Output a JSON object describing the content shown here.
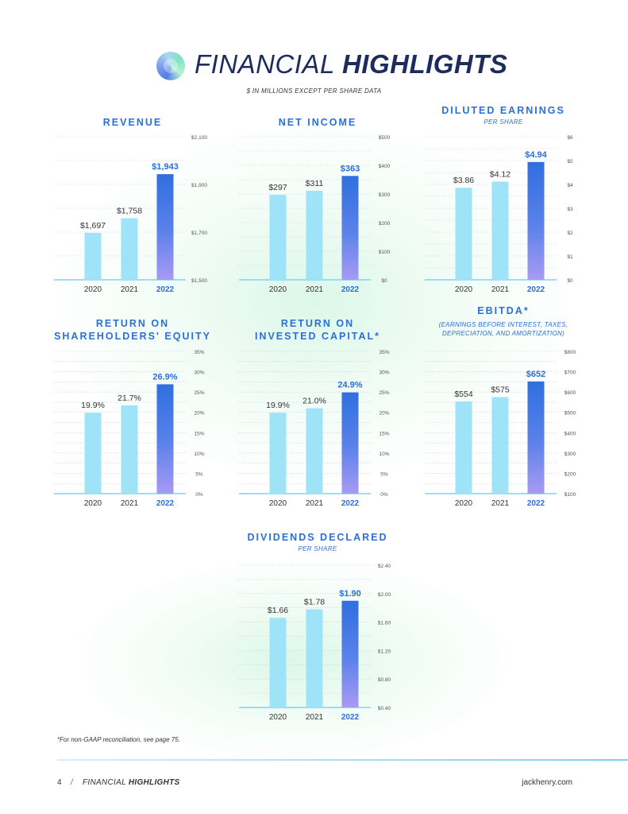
{
  "header": {
    "title_light": "FINANCIAL ",
    "title_bold": "HIGHLIGHTS",
    "subtitle": "$ IN MILLIONS EXCEPT PER SHARE DATA"
  },
  "chart_data": [
    {
      "id": "revenue",
      "type": "bar",
      "title": "REVENUE",
      "subtitle": "",
      "categories": [
        "2020",
        "2021",
        "2022"
      ],
      "values": [
        1697,
        1758,
        1943
      ],
      "value_labels": [
        "$1,697",
        "$1,758",
        "$1,943"
      ],
      "ylim": [
        1500,
        2100
      ],
      "yticks": [
        {
          "v": 1500,
          "label": "$1,500"
        },
        {
          "v": 1700,
          "label": "$1,700"
        },
        {
          "v": 1900,
          "label": "$1,900"
        },
        {
          "v": 2100,
          "label": "$2,100"
        }
      ],
      "grid": true
    },
    {
      "id": "net-income",
      "type": "bar",
      "title": "NET INCOME",
      "subtitle": "",
      "categories": [
        "2020",
        "2021",
        "2022"
      ],
      "values": [
        297,
        311,
        363
      ],
      "value_labels": [
        "$297",
        "$311",
        "$363"
      ],
      "ylim": [
        0,
        500
      ],
      "yticks": [
        {
          "v": 0,
          "label": "$0"
        },
        {
          "v": 100,
          "label": "$100"
        },
        {
          "v": 200,
          "label": "$200"
        },
        {
          "v": 300,
          "label": "$300"
        },
        {
          "v": 400,
          "label": "$400"
        },
        {
          "v": 500,
          "label": "$500"
        }
      ],
      "grid": true
    },
    {
      "id": "diluted-eps",
      "type": "bar",
      "title": "DILUTED EARNINGS",
      "subtitle": "PER SHARE",
      "categories": [
        "2020",
        "2021",
        "2022"
      ],
      "values": [
        3.86,
        4.12,
        4.94
      ],
      "value_labels": [
        "$3.86",
        "$4.12",
        "$4.94"
      ],
      "ylim": [
        0,
        6
      ],
      "yticks": [
        {
          "v": 0,
          "label": "$0"
        },
        {
          "v": 1,
          "label": "$1"
        },
        {
          "v": 2,
          "label": "$2"
        },
        {
          "v": 3,
          "label": "$3"
        },
        {
          "v": 4,
          "label": "$4"
        },
        {
          "v": 5,
          "label": "$5"
        },
        {
          "v": 6,
          "label": "$6"
        }
      ],
      "grid": true
    },
    {
      "id": "roe",
      "type": "bar",
      "title": "RETURN ON\nSHAREHOLDERS' EQUITY",
      "subtitle": "",
      "categories": [
        "2020",
        "2021",
        "2022"
      ],
      "values": [
        19.9,
        21.7,
        26.9
      ],
      "value_labels": [
        "19.9%",
        "21.7%",
        "26.9%"
      ],
      "ylim": [
        0,
        35
      ],
      "yticks": [
        {
          "v": 0,
          "label": "0%"
        },
        {
          "v": 5,
          "label": "5%"
        },
        {
          "v": 10,
          "label": "10%"
        },
        {
          "v": 15,
          "label": "15%"
        },
        {
          "v": 20,
          "label": "20%"
        },
        {
          "v": 25,
          "label": "25%"
        },
        {
          "v": 30,
          "label": "30%"
        },
        {
          "v": 35,
          "label": "35%"
        }
      ],
      "grid": true
    },
    {
      "id": "roic",
      "type": "bar",
      "title": "RETURN ON\nINVESTED CAPITAL*",
      "subtitle": "",
      "categories": [
        "2020",
        "2021",
        "2022"
      ],
      "values": [
        19.9,
        21.0,
        24.9
      ],
      "value_labels": [
        "19.9%",
        "21.0%",
        "24.9%"
      ],
      "ylim": [
        0,
        35
      ],
      "yticks": [
        {
          "v": 0,
          "label": "0%"
        },
        {
          "v": 5,
          "label": "5%"
        },
        {
          "v": 10,
          "label": "10%"
        },
        {
          "v": 15,
          "label": "15%"
        },
        {
          "v": 20,
          "label": "20%"
        },
        {
          "v": 25,
          "label": "25%"
        },
        {
          "v": 30,
          "label": "30%"
        },
        {
          "v": 35,
          "label": "35%"
        }
      ],
      "grid": true
    },
    {
      "id": "ebitda",
      "type": "bar",
      "title": "EBITDA*",
      "subtitle": "(EARNINGS BEFORE INTEREST, TAXES,\nDEPRECIATION, AND AMORTIZATION)",
      "categories": [
        "2020",
        "2021",
        "2022"
      ],
      "values": [
        554,
        575,
        652
      ],
      "value_labels": [
        "$554",
        "$575",
        "$652"
      ],
      "ylim": [
        100,
        800
      ],
      "yticks": [
        {
          "v": 100,
          "label": "$100"
        },
        {
          "v": 200,
          "label": "$200"
        },
        {
          "v": 300,
          "label": "$300"
        },
        {
          "v": 400,
          "label": "$400"
        },
        {
          "v": 500,
          "label": "$500"
        },
        {
          "v": 600,
          "label": "$600"
        },
        {
          "v": 700,
          "label": "$700"
        },
        {
          "v": 800,
          "label": "$800"
        }
      ],
      "grid": true
    },
    {
      "id": "dividends",
      "type": "bar",
      "title": "DIVIDENDS DECLARED",
      "subtitle": "PER SHARE",
      "categories": [
        "2020",
        "2021",
        "2022"
      ],
      "values": [
        1.66,
        1.78,
        1.9
      ],
      "value_labels": [
        "$1.66",
        "$1.78",
        "$1.90"
      ],
      "ylim": [
        0.4,
        2.4
      ],
      "yticks": [
        {
          "v": 0.4,
          "label": "$0.40"
        },
        {
          "v": 0.8,
          "label": "$0.80"
        },
        {
          "v": 1.2,
          "label": "$1.20"
        },
        {
          "v": 1.6,
          "label": "$1.60"
        },
        {
          "v": 2.0,
          "label": "$2.00"
        },
        {
          "v": 2.4,
          "label": "$2.40"
        }
      ],
      "grid": true
    }
  ],
  "colors": {
    "bar_light": "#9ee3f8",
    "bar_highlight_top": "#2f6fe0",
    "bar_highlight_bottom": "#a99af4",
    "accent": "#2a6fdc"
  },
  "footnote": "*For non-GAAP reconciliation, see page 75.",
  "footer": {
    "page_number": "4",
    "slash": "/",
    "section_light": "FINANCIAL ",
    "section_bold": "HIGHLIGHTS",
    "url": "jackhenry.com"
  }
}
